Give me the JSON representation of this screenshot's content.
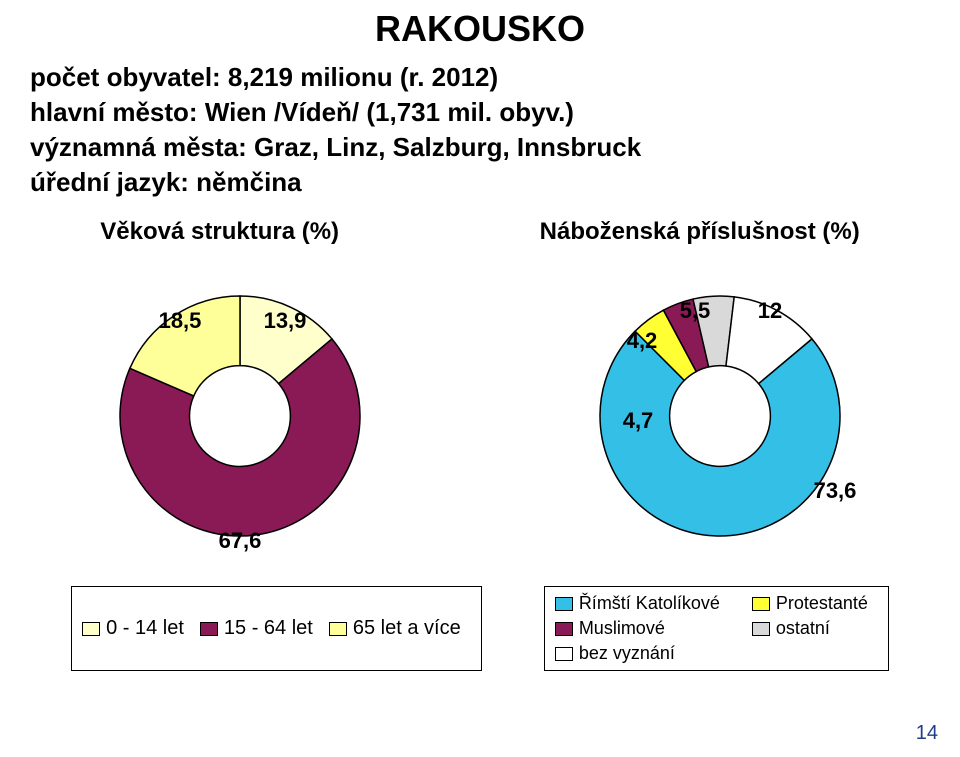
{
  "title": "RAKOUSKO",
  "facts": {
    "line1": "počet obyvatel: 8,219 milionu (r. 2012)",
    "line2": "hlavní město: Wien /Vídeň/ (1,731 mil. obyv.)",
    "line3": "významná města: Graz, Linz, Salzburg, Innsbruck",
    "line4": "úřední jazyk: němčina"
  },
  "chart_age": {
    "heading": "Věková struktura (%)",
    "type": "donut",
    "background_color": "#ffffff",
    "stroke_color": "#000000",
    "stroke_width": 1.5,
    "inner_radius_ratio": 0.42,
    "legend_border": "#000000",
    "slices": [
      {
        "label": "0 - 14 let",
        "value": 13.9,
        "color": "#ffffcc",
        "swatch": "#ffffcc"
      },
      {
        "label": "15 - 64 let",
        "value": 67.6,
        "color": "#8a1a55",
        "swatch": "#8a1a55"
      },
      {
        "label": "65 let a více",
        "value": 18.5,
        "color": "#ffff99",
        "swatch": "#ffff99"
      }
    ],
    "value_labels": {
      "v0": "13,9",
      "v1": "67,6",
      "v2": "18,5"
    }
  },
  "chart_rel": {
    "heading": "Náboženská příslušnost (%)",
    "type": "donut",
    "background_color": "#ffffff",
    "stroke_color": "#000000",
    "stroke_width": 1.5,
    "inner_radius_ratio": 0.42,
    "legend_border": "#000000",
    "slices": [
      {
        "label": "Římští Katolíkové",
        "value": 73.6,
        "color": "#33bfe6",
        "swatch": "#33bfe6"
      },
      {
        "label": "Protestanté",
        "value": 4.7,
        "color": "#ffff33",
        "swatch": "#ffff33"
      },
      {
        "label": "Muslimové",
        "value": 4.2,
        "color": "#8a1a55",
        "swatch": "#8a1a55"
      },
      {
        "label": "ostatní",
        "value": 5.5,
        "color": "#d9d9d9",
        "swatch": "#d9d9d9"
      },
      {
        "label": "bez vyznání",
        "value": 12.0,
        "color": "#ffffff",
        "swatch": "#ffffff"
      }
    ],
    "value_labels": {
      "v0": "73,6",
      "v1": "4,7",
      "v2": "4,2",
      "v3": "5,5",
      "v4": "12"
    }
  },
  "page_number": "14",
  "hidden_corner": ""
}
